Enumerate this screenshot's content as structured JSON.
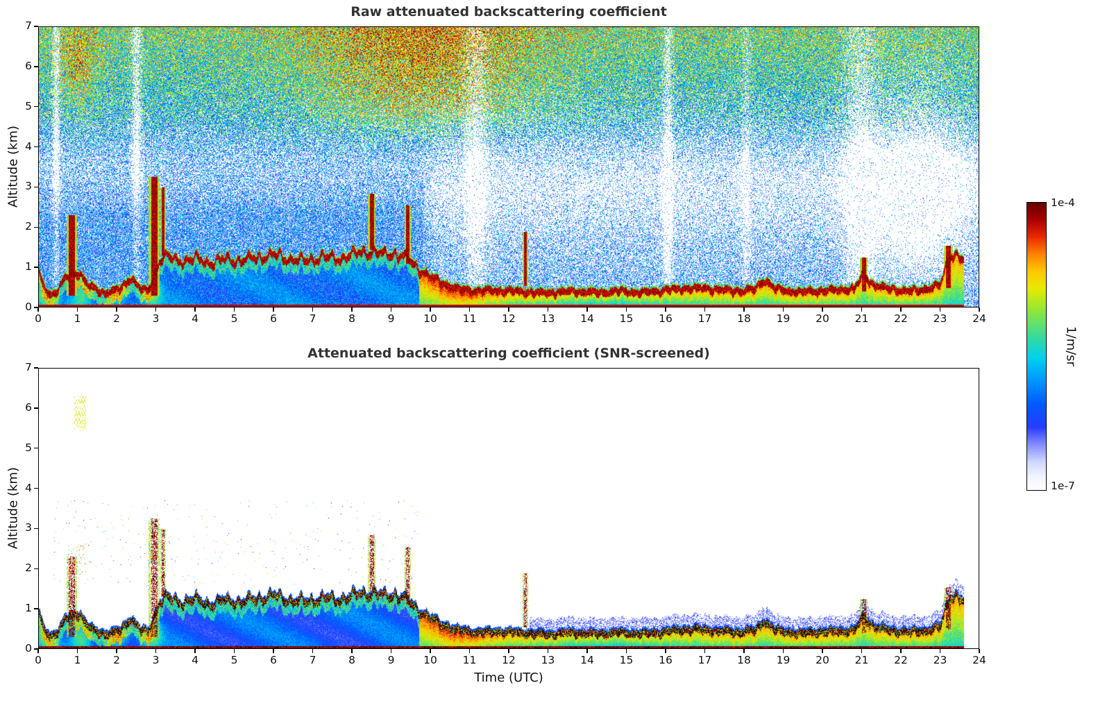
{
  "figure": {
    "background": "#ffffff"
  },
  "chart_data": {
    "type": "heatmap",
    "panels": [
      {
        "title": "Raw attenuated backscattering coefficient",
        "screened": false
      },
      {
        "title": "Attenuated backscattering coefficient (SNR-screened)",
        "screened": true
      }
    ],
    "xlabel": "Time (UTC)",
    "ylabel": "Altitude (km)",
    "x_range": [
      0,
      24
    ],
    "y_range": [
      0,
      7
    ],
    "x_ticks": [
      0,
      1,
      2,
      3,
      4,
      5,
      6,
      7,
      8,
      9,
      10,
      11,
      12,
      13,
      14,
      15,
      16,
      17,
      18,
      19,
      20,
      21,
      22,
      23,
      24
    ],
    "y_ticks": [
      0,
      1,
      2,
      3,
      4,
      5,
      6,
      7
    ],
    "data_end_hour": 23.6,
    "colorbar": {
      "top_label": "1e-4",
      "bottom_label": "1e-7",
      "units_label": "1/m/sr",
      "scale": "log10",
      "vmin": 1e-07,
      "vmax": 0.0001
    },
    "colormap": {
      "stops": [
        {
          "v": 0.0,
          "c": [
            255,
            255,
            255
          ]
        },
        {
          "v": 0.05,
          "c": [
            240,
            244,
            255
          ]
        },
        {
          "v": 0.1,
          "c": [
            205,
            215,
            255
          ]
        },
        {
          "v": 0.16,
          "c": [
            130,
            140,
            255
          ]
        },
        {
          "v": 0.22,
          "c": [
            40,
            60,
            255
          ]
        },
        {
          "v": 0.3,
          "c": [
            0,
            90,
            255
          ]
        },
        {
          "v": 0.38,
          "c": [
            0,
            150,
            255
          ]
        },
        {
          "v": 0.46,
          "c": [
            0,
            210,
            235
          ]
        },
        {
          "v": 0.54,
          "c": [
            60,
            220,
            150
          ]
        },
        {
          "v": 0.62,
          "c": [
            140,
            230,
            60
          ]
        },
        {
          "v": 0.7,
          "c": [
            230,
            235,
            0
          ]
        },
        {
          "v": 0.76,
          "c": [
            255,
            200,
            0
          ]
        },
        {
          "v": 0.82,
          "c": [
            255,
            130,
            0
          ]
        },
        {
          "v": 0.88,
          "c": [
            235,
            40,
            0
          ]
        },
        {
          "v": 0.94,
          "c": [
            170,
            0,
            0
          ]
        },
        {
          "v": 1.0,
          "c": [
            100,
            0,
            0
          ]
        }
      ]
    },
    "boundary_layer": {
      "hours": [
        0.0,
        0.15,
        0.3,
        0.5,
        0.7,
        1.0,
        1.3,
        1.7,
        2.1,
        2.35,
        2.6,
        2.8,
        3.1,
        3.3,
        3.6,
        4.0,
        4.4,
        4.8,
        5.2,
        5.6,
        6.0,
        6.4,
        6.8,
        7.2,
        7.6,
        8.0,
        8.4,
        8.8,
        9.1,
        9.4,
        9.7,
        10.0,
        10.3,
        10.7,
        11.2,
        11.8,
        12.4,
        13.0,
        13.6,
        14.2,
        14.8,
        15.4,
        16.0,
        16.6,
        17.2,
        17.8,
        18.3,
        18.5,
        18.8,
        19.3,
        19.8,
        20.3,
        20.8,
        21.05,
        21.3,
        21.7,
        22.2,
        22.7,
        23.0,
        23.25,
        23.45,
        23.6,
        24.0
      ],
      "top_km": [
        0.95,
        0.6,
        0.4,
        0.5,
        0.85,
        1.0,
        0.6,
        0.45,
        0.55,
        0.85,
        0.55,
        0.5,
        1.3,
        1.35,
        1.25,
        1.3,
        1.2,
        1.3,
        1.25,
        1.35,
        1.4,
        1.3,
        1.25,
        1.35,
        1.3,
        1.4,
        1.5,
        1.4,
        1.45,
        1.3,
        1.05,
        0.85,
        0.7,
        0.55,
        0.5,
        0.52,
        0.48,
        0.45,
        0.5,
        0.46,
        0.5,
        0.46,
        0.52,
        0.58,
        0.55,
        0.5,
        0.55,
        0.8,
        0.55,
        0.48,
        0.5,
        0.52,
        0.55,
        0.9,
        0.65,
        0.55,
        0.5,
        0.55,
        0.65,
        1.45,
        1.35,
        1.25,
        1.2
      ]
    },
    "clouds": [
      {
        "t": 0.85,
        "w": 0.13,
        "base": 0.3,
        "top": 2.3
      },
      {
        "t": 2.95,
        "w": 0.14,
        "base": 0.3,
        "top": 3.25
      },
      {
        "t": 3.18,
        "w": 0.07,
        "base": 1.3,
        "top": 3.0
      },
      {
        "t": 8.5,
        "w": 0.1,
        "base": 1.45,
        "top": 2.85
      },
      {
        "t": 9.42,
        "w": 0.08,
        "base": 1.1,
        "top": 2.55
      },
      {
        "t": 12.42,
        "w": 0.07,
        "base": 0.55,
        "top": 1.9
      },
      {
        "t": 21.05,
        "w": 0.1,
        "base": 0.4,
        "top": 1.25
      },
      {
        "t": 23.2,
        "w": 0.12,
        "base": 0.5,
        "top": 1.55
      }
    ],
    "white_columns": [
      {
        "t": 0.45,
        "w": 0.07,
        "a": 0.65
      },
      {
        "t": 2.5,
        "w": 0.09,
        "a": 0.6
      },
      {
        "t": 11.15,
        "w": 0.2,
        "a": 0.4
      },
      {
        "t": 16.05,
        "w": 0.09,
        "a": 0.55
      },
      {
        "t": 18.05,
        "w": 0.08,
        "a": 0.3
      },
      {
        "t": 20.95,
        "w": 0.3,
        "a": 0.4
      }
    ]
  }
}
